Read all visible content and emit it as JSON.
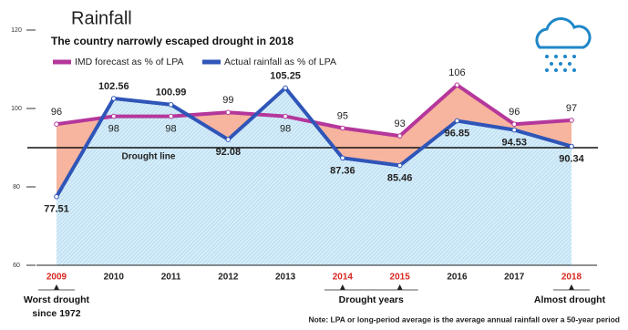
{
  "chart_data": {
    "type": "line",
    "title": "Rainfall",
    "subtitle": "The country narrowly escaped drought in 2018",
    "categories": [
      "2009",
      "2010",
      "2011",
      "2012",
      "2013",
      "2014",
      "2015",
      "2016",
      "2017",
      "2018"
    ],
    "series": [
      {
        "name": "IMD forecast as % of LPA",
        "color": "#b5379b",
        "fill": "#f7b49e",
        "values": [
          96,
          98,
          98,
          99,
          98,
          95,
          93,
          106,
          96,
          97
        ]
      },
      {
        "name": "Actual rainfall as % of LPA",
        "color": "#2f55b8",
        "fill": "#c3e3f5",
        "values": [
          77.51,
          102.56,
          100.99,
          92.08,
          105.25,
          87.36,
          85.46,
          96.85,
          94.53,
          90.34
        ]
      }
    ],
    "ylim": [
      60,
      120
    ],
    "yticks": [
      60,
      80,
      100,
      120
    ],
    "reference_line": {
      "value": 90,
      "label": "Drought line"
    },
    "highlighted_categories": [
      "2009",
      "2014",
      "2015",
      "2018"
    ],
    "highlight_color": "#d8261f",
    "annotations": [
      {
        "lines": [
          "Worst drought",
          "since 1972"
        ],
        "categories": [
          "2009"
        ]
      },
      {
        "lines": [
          "Drought years"
        ],
        "categories": [
          "2014",
          "2015"
        ]
      },
      {
        "lines": [
          "Almost drought"
        ],
        "categories": [
          "2018"
        ]
      }
    ],
    "note": "Note: LPA or long-period average is the average annual rainfall over a 50-year period"
  }
}
